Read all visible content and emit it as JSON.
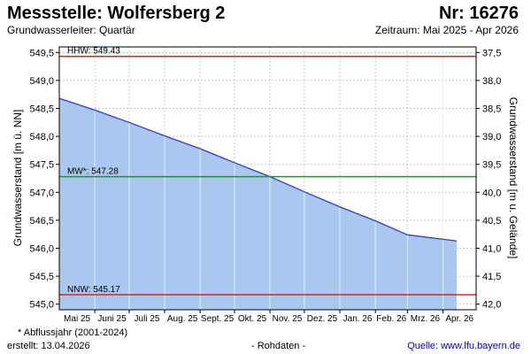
{
  "header": {
    "title": "Messstelle: Wolfersberg 2",
    "number": "Nr: 16276",
    "aquifer": "Grundwasserleiter: Quartär",
    "period": "Zeitraum: Mai 2025 - Apr 2026"
  },
  "footer": {
    "note": "* Abflussjahr (2001-2024)",
    "created": "erstellt:  13.04.2026",
    "raw": "- Rohdaten -",
    "source": "Quelle: www.lfu.bayern.de"
  },
  "colors": {
    "fill": "#a9c7ef",
    "line": "#2a3fd6",
    "extreme": "#e02020",
    "mean": "#1a9a1a",
    "grid": "#c8c8c8"
  },
  "chart_data": {
    "type": "area",
    "ylabel": "Grundwasserstand [m ü. NN]",
    "y2label": "Grundwasserstand [m u. Gelände]",
    "ylim": [
      544.9,
      549.6
    ],
    "yticks": [
      545.0,
      545.5,
      546.0,
      546.5,
      547.0,
      547.5,
      548.0,
      548.5,
      549.0,
      549.5
    ],
    "ytick_labels": [
      "545,0",
      "545,5",
      "546,0",
      "546,5",
      "547,0",
      "547,5",
      "548,0",
      "548,5",
      "549,0",
      "549,5"
    ],
    "y2ticks": [
      37.5,
      38.0,
      38.5,
      39.0,
      39.5,
      40.0,
      40.5,
      41.0,
      41.5,
      42.0
    ],
    "y2tick_labels": [
      "37,5",
      "38,0",
      "38,5",
      "39,0",
      "39,5",
      "40,0",
      "40,5",
      "41,0",
      "41,5",
      "42,0"
    ],
    "y2_reference": 587.0,
    "xrange": [
      "2025-05-01",
      "2026-04-30"
    ],
    "months": [
      "Mai 25",
      "Juni 25",
      "Juli 25",
      "Aug. 25",
      "Sept. 25",
      "Okt. 25",
      "Nov. 25",
      "Dez. 25",
      "Jan. 26",
      "Feb. 26",
      "Mrz. 26",
      "Apr. 26"
    ],
    "month_starts": [
      "2025-05-01",
      "2025-06-01",
      "2025-07-01",
      "2025-08-01",
      "2025-09-01",
      "2025-10-01",
      "2025-11-01",
      "2025-12-01",
      "2026-01-01",
      "2026-02-01",
      "2026-03-01",
      "2026-04-01"
    ],
    "series": [
      {
        "x": [
          "2025-05-01",
          "2025-06-01",
          "2025-07-01",
          "2025-08-01",
          "2025-09-01",
          "2025-10-01",
          "2025-11-01",
          "2025-12-01",
          "2026-01-01",
          "2026-02-01",
          "2026-03-01",
          "2026-04-13"
        ],
        "y": [
          548.68,
          548.47,
          548.25,
          548.01,
          547.78,
          547.53,
          547.28,
          547.01,
          546.74,
          546.49,
          546.24,
          546.13
        ]
      }
    ],
    "reference_lines": [
      {
        "label": "HHW: 549.43",
        "value": 549.43,
        "type": "extreme"
      },
      {
        "label": "MW*: 547.28",
        "value": 547.28,
        "type": "mean"
      },
      {
        "label": "NNW: 545.17",
        "value": 545.17,
        "type": "extreme"
      }
    ],
    "grid": true
  }
}
